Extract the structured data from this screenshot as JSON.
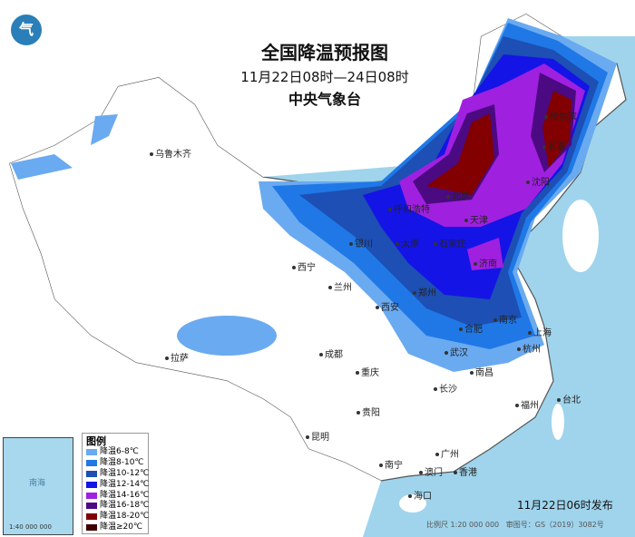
{
  "header": {
    "title": "全国降温预报图",
    "period": "11月22日08时—24日08时",
    "organization": "中央气象台"
  },
  "legend": {
    "title": "图例",
    "items": [
      {
        "label": "降温6-8℃",
        "color": "#6aaaf0"
      },
      {
        "label": "降温8-10℃",
        "color": "#1f78e6"
      },
      {
        "label": "降温10-12℃",
        "color": "#1d4fb4"
      },
      {
        "label": "降温12-14℃",
        "color": "#1414e6"
      },
      {
        "label": "降温14-16℃",
        "color": "#a020e0"
      },
      {
        "label": "降温16-18℃",
        "color": "#4b0a82"
      },
      {
        "label": "降温18-20℃",
        "color": "#820000"
      },
      {
        "label": "降温≥20℃",
        "color": "#3c0000"
      }
    ]
  },
  "cities": [
    "乌鲁木齐",
    "拉萨",
    "西宁",
    "兰州",
    "银川",
    "呼和浩特",
    "北京",
    "天津",
    "石家庄",
    "太原",
    "济南",
    "郑州",
    "西安",
    "合肥",
    "南京",
    "上海",
    "杭州",
    "武汉",
    "南昌",
    "长沙",
    "成都",
    "重庆",
    "贵阳",
    "昆明",
    "南宁",
    "广州",
    "澳门",
    "香港",
    "福州",
    "台北",
    "海口",
    "沈阳",
    "长春",
    "哈尔滨"
  ],
  "footer": {
    "issued": "11月22日06时发布",
    "scale": "比例尺 1:20 000 000",
    "review_no": "审图号：GS（2019）3082号"
  },
  "inset": {
    "sea": "南海",
    "scale": "1:40 000 000"
  }
}
